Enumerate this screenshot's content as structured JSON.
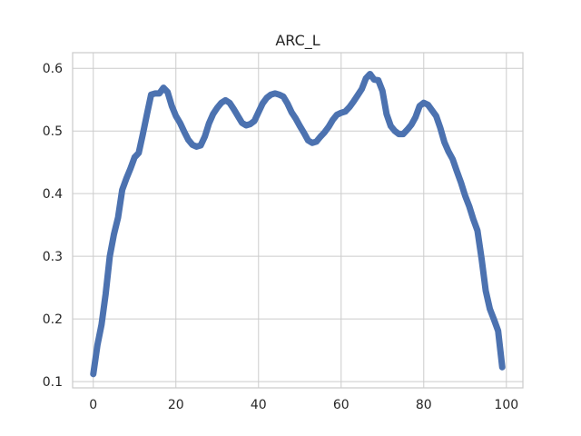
{
  "chart_data": {
    "type": "line",
    "title": "ARC_L",
    "xlabel": "",
    "ylabel": "",
    "xlim": [
      -5,
      104
    ],
    "ylim": [
      0.09,
      0.625
    ],
    "grid": true,
    "x_ticks": [
      0,
      20,
      40,
      60,
      80,
      100
    ],
    "y_ticks": [
      0.1,
      0.2,
      0.3,
      0.4,
      0.5,
      0.6
    ],
    "line_color": "#4c72b0",
    "series": [
      {
        "x": [
          0,
          1,
          2,
          3,
          4,
          5,
          6,
          7,
          8,
          9,
          10,
          11,
          12,
          13,
          14,
          15,
          16,
          17,
          18,
          19,
          20,
          21,
          22,
          23,
          24,
          25,
          26,
          27,
          28,
          29,
          30,
          31,
          32,
          33,
          34,
          35,
          36,
          37,
          38,
          39,
          40,
          41,
          42,
          43,
          44,
          45,
          46,
          47,
          48,
          49,
          50,
          51,
          52,
          53,
          54,
          55,
          56,
          57,
          58,
          59,
          60,
          61,
          62,
          63,
          64,
          65,
          66,
          67,
          68,
          69,
          70,
          71,
          72,
          73,
          74,
          75,
          76,
          77,
          78,
          79,
          80,
          81,
          82,
          83,
          84,
          85,
          86,
          87,
          88,
          89,
          90,
          91,
          92,
          93,
          94,
          95,
          96,
          97,
          98,
          99
        ],
        "y": [
          0.112,
          0.158,
          0.191,
          0.24,
          0.3,
          0.335,
          0.362,
          0.406,
          0.424,
          0.44,
          0.458,
          0.465,
          0.495,
          0.527,
          0.558,
          0.56,
          0.56,
          0.569,
          0.562,
          0.54,
          0.524,
          0.513,
          0.499,
          0.486,
          0.478,
          0.475,
          0.477,
          0.491,
          0.512,
          0.527,
          0.537,
          0.545,
          0.549,
          0.545,
          0.535,
          0.524,
          0.513,
          0.509,
          0.511,
          0.516,
          0.53,
          0.544,
          0.553,
          0.558,
          0.56,
          0.558,
          0.555,
          0.544,
          0.53,
          0.52,
          0.508,
          0.497,
          0.485,
          0.481,
          0.483,
          0.491,
          0.498,
          0.507,
          0.518,
          0.526,
          0.529,
          0.531,
          0.538,
          0.547,
          0.557,
          0.567,
          0.584,
          0.591,
          0.582,
          0.581,
          0.564,
          0.527,
          0.508,
          0.5,
          0.495,
          0.495,
          0.502,
          0.51,
          0.522,
          0.54,
          0.545,
          0.542,
          0.533,
          0.524,
          0.505,
          0.482,
          0.467,
          0.455,
          0.436,
          0.418,
          0.397,
          0.38,
          0.359,
          0.341,
          0.296,
          0.245,
          0.216,
          0.199,
          0.181,
          0.123
        ]
      }
    ]
  }
}
